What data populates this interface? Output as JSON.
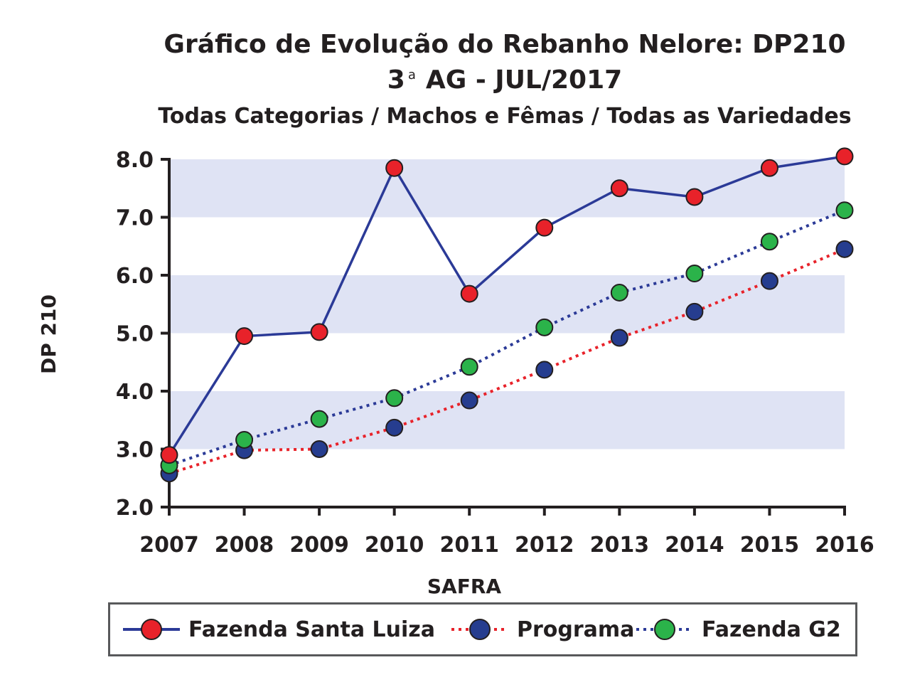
{
  "title": {
    "line1": "Gráfico de Evolução do Rebanho Nelore: DP210",
    "line2_pre": "3",
    "line2_sup": "a",
    "line2_post": "AG - JUL/2017",
    "line3": "Todas Categorias / Machos e Fêmas / Todas as Variedades"
  },
  "chart_data": {
    "type": "line",
    "title": "Gráfico de Evolução do Rebanho Nelore: DP210",
    "subtitle": "3ª AG - JUL/2017 — Todas Categorias / Machos e Fêmas / Todas as Variedades",
    "xlabel": "SAFRA",
    "ylabel": "DP 210",
    "x": [
      "2007",
      "2008",
      "2009",
      "2010",
      "2011",
      "2012",
      "2013",
      "2014",
      "2015",
      "2016"
    ],
    "y_ticks": [
      "2.0",
      "3.0",
      "4.0",
      "5.0",
      "6.0",
      "7.0",
      "8.0"
    ],
    "ylim": [
      2.0,
      8.0
    ],
    "grid": "alternating horizontal bands",
    "legend_position": "bottom",
    "series": [
      {
        "name": "Fazenda Santa Luiza",
        "line_color": "#2b3a97",
        "line_style": "solid",
        "marker_color": "#e8222a",
        "values": [
          2.9,
          4.95,
          5.02,
          7.85,
          5.68,
          6.82,
          7.5,
          7.35,
          7.85,
          8.05
        ]
      },
      {
        "name": "Programa",
        "line_color": "#e8222a",
        "line_style": "dotted",
        "marker_color": "#263d8f",
        "values": [
          2.58,
          2.98,
          3.0,
          3.37,
          3.84,
          4.37,
          4.92,
          5.37,
          5.9,
          6.45
        ]
      },
      {
        "name": "Fazenda G2",
        "line_color": "#2b3a97",
        "line_style": "dotted",
        "marker_color": "#2bb34a",
        "values": [
          2.72,
          3.16,
          3.52,
          3.88,
          4.42,
          5.1,
          5.7,
          6.03,
          6.58,
          7.12
        ]
      }
    ]
  },
  "colors": {
    "band": "#dfe3f4",
    "axis": "#231f20",
    "legend_border": "#58595b"
  }
}
